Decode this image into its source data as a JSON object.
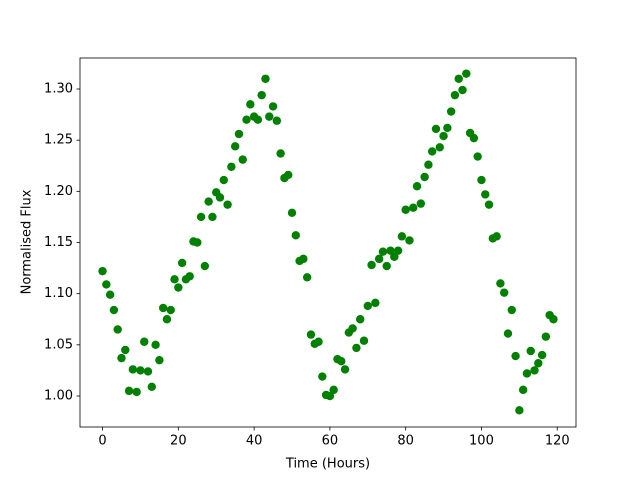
{
  "chart_data": {
    "type": "scatter",
    "xlabel": "Time (Hours)",
    "ylabel": "Normalised Flux",
    "color": "#008000",
    "x": [
      0,
      1,
      2,
      3,
      4,
      5,
      6,
      7,
      8,
      9,
      10,
      11,
      12,
      13,
      14,
      15,
      16,
      17,
      18,
      19,
      20,
      21,
      22,
      23,
      24,
      25,
      26,
      27,
      28,
      29,
      30,
      31,
      32,
      33,
      34,
      35,
      36,
      37,
      38,
      39,
      40,
      41,
      42,
      43,
      44,
      45,
      46,
      47,
      48,
      49,
      50,
      51,
      52,
      53,
      54,
      55,
      56,
      57,
      58,
      59,
      60,
      61,
      62,
      63,
      64,
      65,
      66,
      67,
      68,
      69,
      70,
      71,
      72,
      73,
      74,
      75,
      76,
      77,
      78,
      79,
      80,
      81,
      82,
      83,
      84,
      85,
      86,
      87,
      88,
      89,
      90,
      91,
      92,
      93,
      94,
      95,
      96,
      97,
      98,
      99,
      100,
      101,
      102,
      103,
      104,
      105,
      106,
      107,
      108,
      109,
      110,
      111,
      112,
      113,
      114,
      115,
      116,
      117,
      118,
      119
    ],
    "values": [
      1.122,
      1.109,
      1.099,
      1.084,
      1.065,
      1.037,
      1.045,
      1.005,
      1.026,
      1.004,
      1.025,
      1.053,
      1.024,
      1.009,
      1.05,
      1.035,
      1.086,
      1.075,
      1.084,
      1.114,
      1.106,
      1.13,
      1.114,
      1.117,
      1.151,
      1.15,
      1.175,
      1.127,
      1.19,
      1.175,
      1.199,
      1.194,
      1.211,
      1.187,
      1.224,
      1.244,
      1.256,
      1.231,
      1.27,
      1.285,
      1.273,
      1.27,
      1.294,
      1.31,
      1.273,
      1.283,
      1.269,
      1.237,
      1.213,
      1.216,
      1.179,
      1.157,
      1.132,
      1.134,
      1.116,
      1.06,
      1.051,
      1.053,
      1.019,
      1.001,
      1.0,
      1.006,
      1.036,
      1.034,
      1.026,
      1.062,
      1.066,
      1.047,
      1.075,
      1.054,
      1.088,
      1.128,
      1.091,
      1.134,
      1.141,
      1.127,
      1.142,
      1.136,
      1.142,
      1.156,
      1.182,
      1.152,
      1.184,
      1.205,
      1.188,
      1.214,
      1.226,
      1.239,
      1.261,
      1.243,
      1.254,
      1.262,
      1.278,
      1.294,
      1.31,
      1.299,
      1.315,
      1.257,
      1.252,
      1.234,
      1.211,
      1.197,
      1.187,
      1.154,
      1.156,
      1.11,
      1.101,
      1.061,
      1.084,
      1.039,
      0.986,
      1.006,
      1.022,
      1.044,
      1.025,
      1.032,
      1.04,
      1.058,
      1.079,
      1.075
    ],
    "xlim": [
      -5.95,
      124.95
    ],
    "xticks": [
      0,
      20,
      40,
      60,
      80,
      100,
      120
    ],
    "ylim": [
      0.9697,
      1.3303
    ],
    "yticks": [
      {
        "value": 1.0,
        "label": "1.00"
      },
      {
        "value": 1.05,
        "label": "1.05"
      },
      {
        "value": 1.1,
        "label": "1.10"
      },
      {
        "value": 1.15,
        "label": "1.15"
      },
      {
        "value": 1.2,
        "label": "1.20"
      },
      {
        "value": 1.25,
        "label": "1.25"
      },
      {
        "value": 1.3,
        "label": "1.30"
      }
    ]
  }
}
